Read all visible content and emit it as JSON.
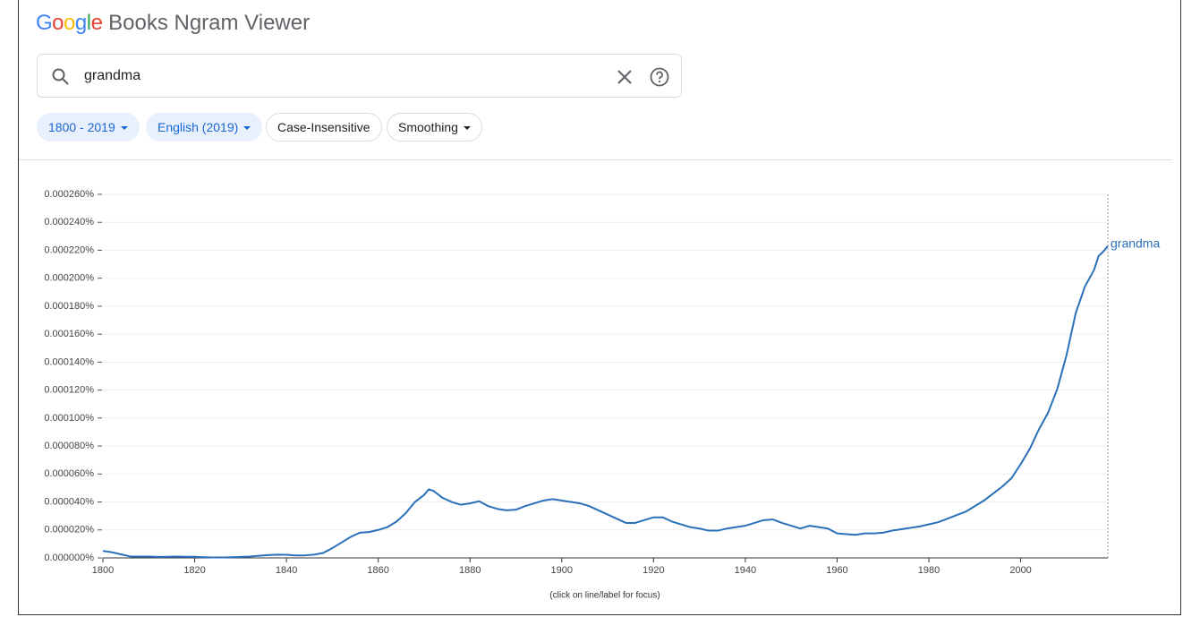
{
  "header": {
    "brand": "Google",
    "brand_colors": [
      "#4285f4",
      "#ea4335",
      "#fbbc05",
      "#4285f4",
      "#34a853",
      "#ea4335"
    ],
    "title": "Books Ngram Viewer"
  },
  "search": {
    "query": "grandma"
  },
  "filters": [
    "1800 - 2019",
    "English (2019)",
    "Case-Insensitive",
    "Smoothing"
  ],
  "chart_data": {
    "type": "line",
    "x": [
      1800,
      1802,
      1804,
      1806,
      1808,
      1810,
      1812,
      1814,
      1816,
      1818,
      1820,
      1822,
      1824,
      1826,
      1828,
      1830,
      1832,
      1834,
      1836,
      1838,
      1840,
      1842,
      1844,
      1846,
      1848,
      1850,
      1852,
      1854,
      1856,
      1858,
      1860,
      1862,
      1864,
      1866,
      1868,
      1870,
      1871,
      1872,
      1874,
      1876,
      1878,
      1880,
      1882,
      1884,
      1886,
      1888,
      1890,
      1892,
      1894,
      1896,
      1898,
      1900,
      1902,
      1904,
      1906,
      1908,
      1910,
      1912,
      1914,
      1916,
      1918,
      1920,
      1922,
      1924,
      1926,
      1928,
      1930,
      1932,
      1934,
      1936,
      1938,
      1940,
      1942,
      1944,
      1946,
      1948,
      1950,
      1952,
      1954,
      1956,
      1958,
      1960,
      1962,
      1964,
      1966,
      1968,
      1970,
      1972,
      1974,
      1976,
      1978,
      1980,
      1982,
      1984,
      1986,
      1988,
      1990,
      1992,
      1994,
      1996,
      1998,
      2000,
      2002,
      2004,
      2006,
      2008,
      2010,
      2012,
      2014,
      2016,
      2017,
      2018,
      2019
    ],
    "series": [
      {
        "name": "grandma",
        "color": "#2a70b9",
        "values": [
          5e-06,
          4e-06,
          2.5e-06,
          1e-06,
          1e-06,
          1e-06,
          7e-07,
          8e-07,
          1e-06,
          8e-07,
          8e-07,
          5e-07,
          3e-07,
          3e-07,
          5e-07,
          7e-07,
          1e-06,
          1.5e-06,
          2e-06,
          2.3e-06,
          2.2e-06,
          1.8e-06,
          1.8e-06,
          2.3e-06,
          3.5e-06,
          7e-06,
          1.1e-05,
          1.5e-05,
          1.8e-05,
          1.85e-05,
          2e-05,
          2.2e-05,
          2.6e-05,
          3.2e-05,
          4e-05,
          4.5e-05,
          4.9e-05,
          4.8e-05,
          4.3e-05,
          4e-05,
          3.8e-05,
          3.9e-05,
          4.05e-05,
          3.7e-05,
          3.5e-05,
          3.4e-05,
          3.45e-05,
          3.7e-05,
          3.9e-05,
          4.1e-05,
          4.2e-05,
          4.1e-05,
          4e-05,
          3.9e-05,
          3.7e-05,
          3.4e-05,
          3.1e-05,
          2.8e-05,
          2.5e-05,
          2.5e-05,
          2.7e-05,
          2.9e-05,
          2.9e-05,
          2.6e-05,
          2.4e-05,
          2.2e-05,
          2.1e-05,
          1.95e-05,
          1.95e-05,
          2.1e-05,
          2.2e-05,
          2.3e-05,
          2.5e-05,
          2.7e-05,
          2.75e-05,
          2.5e-05,
          2.3e-05,
          2.1e-05,
          2.3e-05,
          2.2e-05,
          2.1e-05,
          1.75e-05,
          1.7e-05,
          1.65e-05,
          1.75e-05,
          1.75e-05,
          1.8e-05,
          1.95e-05,
          2.05e-05,
          2.15e-05,
          2.25e-05,
          2.4e-05,
          2.55e-05,
          2.8e-05,
          3.05e-05,
          3.3e-05,
          3.7e-05,
          4.1e-05,
          4.6e-05,
          5.1e-05,
          5.7e-05,
          6.7e-05,
          7.8e-05,
          9.2e-05,
          0.000104,
          0.000121,
          0.000145,
          0.000175,
          0.000194,
          0.000206,
          0.000216,
          0.000219,
          0.000223
        ]
      }
    ],
    "xlim": [
      1800,
      2019
    ],
    "xticks": [
      1800,
      1820,
      1840,
      1860,
      1880,
      1900,
      1920,
      1940,
      1960,
      1980,
      2000
    ],
    "ylim": [
      0,
      0.00026
    ],
    "yticks": [
      {
        "value": 0,
        "label": "0.000000%"
      },
      {
        "value": 2e-05,
        "label": "0.000020%"
      },
      {
        "value": 4e-05,
        "label": "0.000040%"
      },
      {
        "value": 6e-05,
        "label": "0.000060%"
      },
      {
        "value": 8e-05,
        "label": "0.000080%"
      },
      {
        "value": 0.0001,
        "label": "0.000100%"
      },
      {
        "value": 0.00012,
        "label": "0.000120%"
      },
      {
        "value": 0.00014,
        "label": "0.000140%"
      },
      {
        "value": 0.00016,
        "label": "0.000160%"
      },
      {
        "value": 0.00018,
        "label": "0.000180%"
      },
      {
        "value": 0.0002,
        "label": "0.000200%"
      },
      {
        "value": 0.00022,
        "label": "0.000220%"
      },
      {
        "value": 0.00024,
        "label": "0.000240%"
      },
      {
        "value": 0.00026,
        "label": "0.000260%"
      }
    ],
    "grid": true,
    "note": "(click on line/label for focus)"
  }
}
